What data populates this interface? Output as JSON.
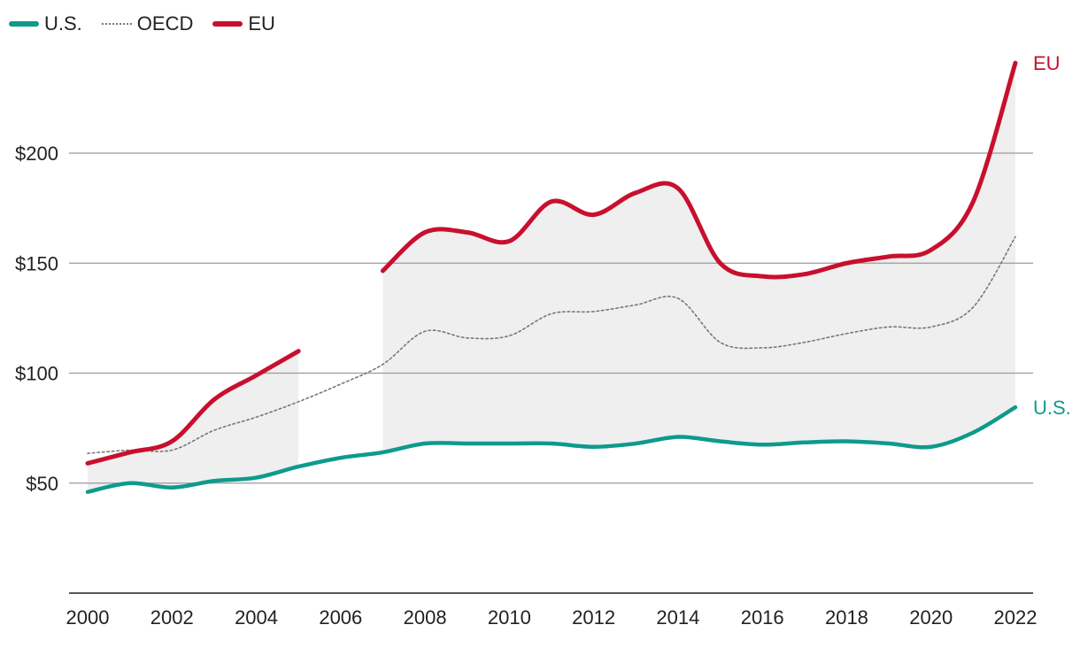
{
  "chart_data": {
    "type": "line",
    "title": "",
    "xlabel": "",
    "ylabel": "",
    "x_ticks": [
      "2000",
      "2002",
      "2004",
      "2006",
      "2008",
      "2010",
      "2012",
      "2014",
      "2016",
      "2018",
      "2020",
      "2022"
    ],
    "y_ticks": [
      "$50",
      "$100",
      "$150",
      "$200"
    ],
    "y_tick_values": [
      50,
      100,
      150,
      200
    ],
    "xlim": [
      2000,
      2022
    ],
    "ylim": [
      0,
      250
    ],
    "grid": true,
    "legend_position": "top-left",
    "shaded_range": "between U.S. and EU",
    "series": [
      {
        "name": "U.S.",
        "color": "#0e9a8c",
        "style": "solid",
        "end_label": "U.S.",
        "points": [
          [
            2000,
            46
          ],
          [
            2001,
            50
          ],
          [
            2002,
            48
          ],
          [
            2003,
            51
          ],
          [
            2004,
            52.5
          ],
          [
            2005,
            57.5
          ],
          [
            2006,
            61.5
          ],
          [
            2007,
            64
          ],
          [
            2008,
            68
          ],
          [
            2009,
            68
          ],
          [
            2010,
            68
          ],
          [
            2011,
            68
          ],
          [
            2012,
            66.5
          ],
          [
            2013,
            68
          ],
          [
            2014,
            71
          ],
          [
            2015,
            69
          ],
          [
            2016,
            67.5
          ],
          [
            2017,
            68.5
          ],
          [
            2018,
            69
          ],
          [
            2019,
            68
          ],
          [
            2020,
            66.5
          ],
          [
            2021,
            73
          ],
          [
            2022,
            84.5
          ]
        ]
      },
      {
        "name": "OECD",
        "color": "#777777",
        "style": "dotted",
        "points": [
          [
            2000,
            63.5
          ],
          [
            2001,
            65
          ],
          [
            2002,
            65
          ],
          [
            2003,
            74
          ],
          [
            2004,
            80
          ],
          [
            2005,
            87
          ],
          [
            2006,
            95
          ],
          [
            2007,
            104
          ],
          [
            2008,
            119
          ],
          [
            2009,
            116
          ],
          [
            2010,
            117
          ],
          [
            2011,
            127
          ],
          [
            2012,
            128
          ],
          [
            2013,
            131
          ],
          [
            2014,
            134
          ],
          [
            2015,
            114
          ],
          [
            2016,
            111.5
          ],
          [
            2017,
            114
          ],
          [
            2018,
            118
          ],
          [
            2019,
            121
          ],
          [
            2020,
            121
          ],
          [
            2021,
            130
          ],
          [
            2022,
            162
          ]
        ]
      },
      {
        "name": "EU",
        "color": "#c8102e",
        "style": "solid",
        "end_label": "EU",
        "points": [
          [
            2000,
            59
          ],
          [
            2001,
            64
          ],
          [
            2002,
            69
          ],
          [
            2003,
            88
          ],
          [
            2004,
            99
          ],
          [
            2005,
            110
          ],
          [
            2007,
            146.5
          ],
          [
            2008,
            164
          ],
          [
            2009,
            164
          ],
          [
            2010,
            160
          ],
          [
            2011,
            178
          ],
          [
            2012,
            172
          ],
          [
            2013,
            182
          ],
          [
            2014,
            184
          ],
          [
            2015,
            150
          ],
          [
            2016,
            144
          ],
          [
            2017,
            145
          ],
          [
            2018,
            150
          ],
          [
            2019,
            153
          ],
          [
            2020,
            156
          ],
          [
            2021,
            178
          ],
          [
            2022,
            241
          ]
        ]
      }
    ]
  }
}
